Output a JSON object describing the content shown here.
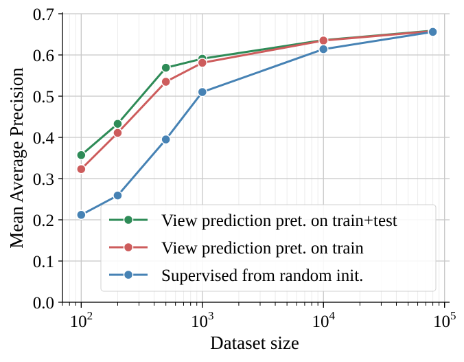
{
  "chart_data": {
    "type": "line",
    "title": "",
    "xlabel": "Dataset size",
    "ylabel": "Mean Average Precision",
    "xscale": "log",
    "xlim": [
      70,
      110000
    ],
    "ylim": [
      0,
      0.7
    ],
    "x_ticks": [
      {
        "value": 100,
        "base": "10",
        "exp": "2"
      },
      {
        "value": 1000,
        "base": "10",
        "exp": "3"
      },
      {
        "value": 10000,
        "base": "10",
        "exp": "4"
      },
      {
        "value": 100000,
        "base": "10",
        "exp": "5"
      }
    ],
    "y_ticks": [
      {
        "value": 0.0,
        "label": "0.0"
      },
      {
        "value": 0.1,
        "label": "0.1"
      },
      {
        "value": 0.2,
        "label": "0.2"
      },
      {
        "value": 0.3,
        "label": "0.3"
      },
      {
        "value": 0.4,
        "label": "0.4"
      },
      {
        "value": 0.5,
        "label": "0.5"
      },
      {
        "value": 0.6,
        "label": "0.6"
      },
      {
        "value": 0.7,
        "label": "0.7"
      }
    ],
    "grid": true,
    "legend_position": "lower-right",
    "x": [
      100,
      200,
      500,
      1000,
      10000,
      80000
    ],
    "series": [
      {
        "name": "View prediction pret. on train+test",
        "color": "#2e8b57",
        "values": [
          0.357,
          0.433,
          0.569,
          0.591,
          0.636,
          0.659
        ]
      },
      {
        "name": "View prediction pret. on train",
        "color": "#cd5c5c",
        "values": [
          0.323,
          0.411,
          0.535,
          0.581,
          0.635,
          0.658
        ]
      },
      {
        "name": "Supervised from random init.",
        "color": "#4682b4",
        "values": [
          0.212,
          0.259,
          0.395,
          0.51,
          0.614,
          0.656
        ]
      }
    ]
  }
}
